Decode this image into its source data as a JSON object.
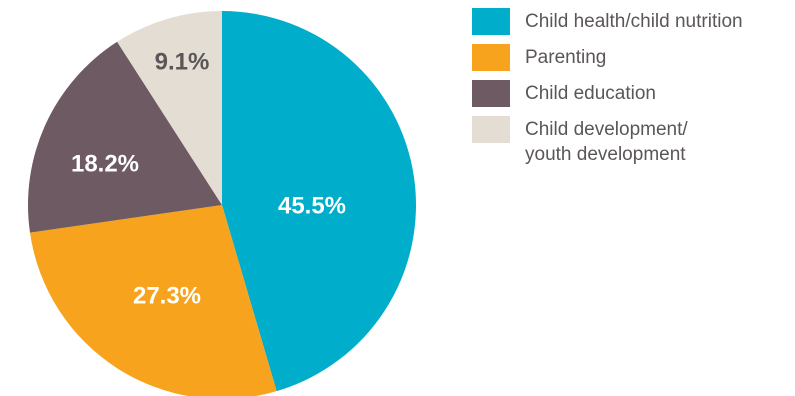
{
  "chart_data": {
    "type": "pie",
    "title": "",
    "start_angle_deg": 0,
    "direction": "clockwise",
    "slices": [
      {
        "label": "Child health/child nutrition",
        "value": 45.5,
        "display": "45.5%",
        "color": "#00aecb",
        "label_color": "#ffffff"
      },
      {
        "label": "Parenting",
        "value": 27.3,
        "display": "27.3%",
        "color": "#f7a31e",
        "label_color": "#ffffff"
      },
      {
        "label": "Child education",
        "value": 18.2,
        "display": "18.2%",
        "color": "#6d5a62",
        "label_color": "#ffffff"
      },
      {
        "label": "Child development/\nyouth development",
        "value": 9.1,
        "display": "9.1%",
        "color": "#e4ddd4",
        "label_color": "#5b5657"
      }
    ],
    "legend_position": "right"
  }
}
